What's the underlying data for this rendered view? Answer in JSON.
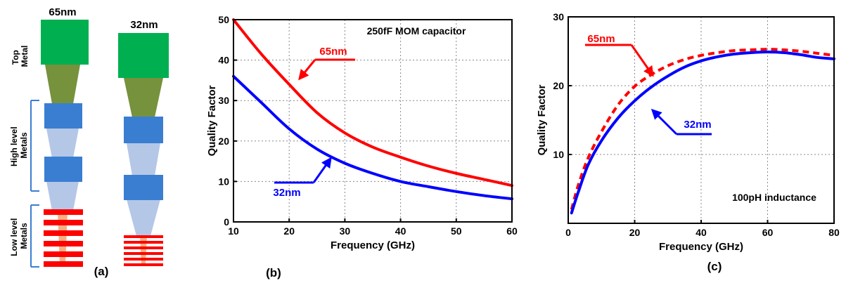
{
  "panel_a": {
    "label": "(a)",
    "col1_title": "65nm",
    "col2_title": "32nm",
    "side_top": "Top\nMetal",
    "side_high": "High level\nMetals",
    "side_low": "Low level\nMetals",
    "colors": {
      "top": "#00b050",
      "via_top": "#76923c",
      "high": "#3a7ed1",
      "via_high": "#b4c7e7",
      "low": "#ff0000",
      "via_low": "#f4b183"
    }
  },
  "chart_data": [
    {
      "type": "line",
      "panel_label": "(b)",
      "annotation": "250fF MOM capacitor",
      "xlabel": "Frequency (GHz)",
      "ylabel": "Quality Factor",
      "xlim": [
        10,
        60
      ],
      "ylim": [
        0,
        50
      ],
      "xticks": [
        "10",
        "20",
        "30",
        "40",
        "50",
        "60"
      ],
      "yticks": [
        "0",
        "10",
        "20",
        "30",
        "40",
        "50"
      ],
      "grid": true,
      "series": [
        {
          "name": "65nm",
          "color": "#ff0000",
          "style": "solid",
          "x": [
            10,
            15,
            20,
            25,
            30,
            35,
            40,
            45,
            50,
            55,
            60
          ],
          "y": [
            50,
            41.5,
            34,
            27,
            22,
            18.5,
            16,
            13.8,
            12,
            10.5,
            9
          ]
        },
        {
          "name": "32nm",
          "color": "#0000ff",
          "style": "solid",
          "x": [
            10,
            15,
            20,
            25,
            30,
            35,
            40,
            45,
            50,
            55,
            60
          ],
          "y": [
            36,
            29.5,
            23,
            18,
            14.5,
            12,
            10,
            8.7,
            7.5,
            6.5,
            5.7
          ]
        }
      ]
    },
    {
      "type": "line",
      "panel_label": "(c)",
      "annotation": "100pH inductance",
      "xlabel": "Frequency (GHz)",
      "ylabel": "Quality Factor",
      "xlim": [
        0,
        80
      ],
      "ylim": [
        0,
        30
      ],
      "xticks": [
        "0",
        "20",
        "40",
        "60",
        "80"
      ],
      "yticks": [
        "10",
        "20",
        "30"
      ],
      "grid": true,
      "series": [
        {
          "name": "65nm",
          "color": "#ff0000",
          "style": "dashed",
          "x": [
            1,
            3,
            6,
            10,
            15,
            20,
            25,
            30,
            35,
            40,
            45,
            50,
            55,
            60,
            65,
            70,
            75,
            80
          ],
          "y": [
            2,
            5.5,
            9.5,
            13.3,
            17.2,
            19.9,
            21.6,
            22.9,
            23.8,
            24.4,
            24.8,
            25.1,
            25.2,
            25.3,
            25.2,
            25,
            24.7,
            24.4
          ]
        },
        {
          "name": "32nm",
          "color": "#0000ff",
          "style": "solid",
          "x": [
            1,
            3,
            6,
            10,
            15,
            20,
            25,
            30,
            35,
            40,
            45,
            50,
            55,
            60,
            65,
            70,
            75,
            80
          ],
          "y": [
            1.5,
            4.5,
            8.5,
            12,
            15.3,
            17.8,
            19.8,
            21.4,
            22.7,
            23.6,
            24.2,
            24.6,
            24.8,
            24.9,
            24.8,
            24.5,
            24.1,
            23.9
          ]
        }
      ]
    }
  ]
}
